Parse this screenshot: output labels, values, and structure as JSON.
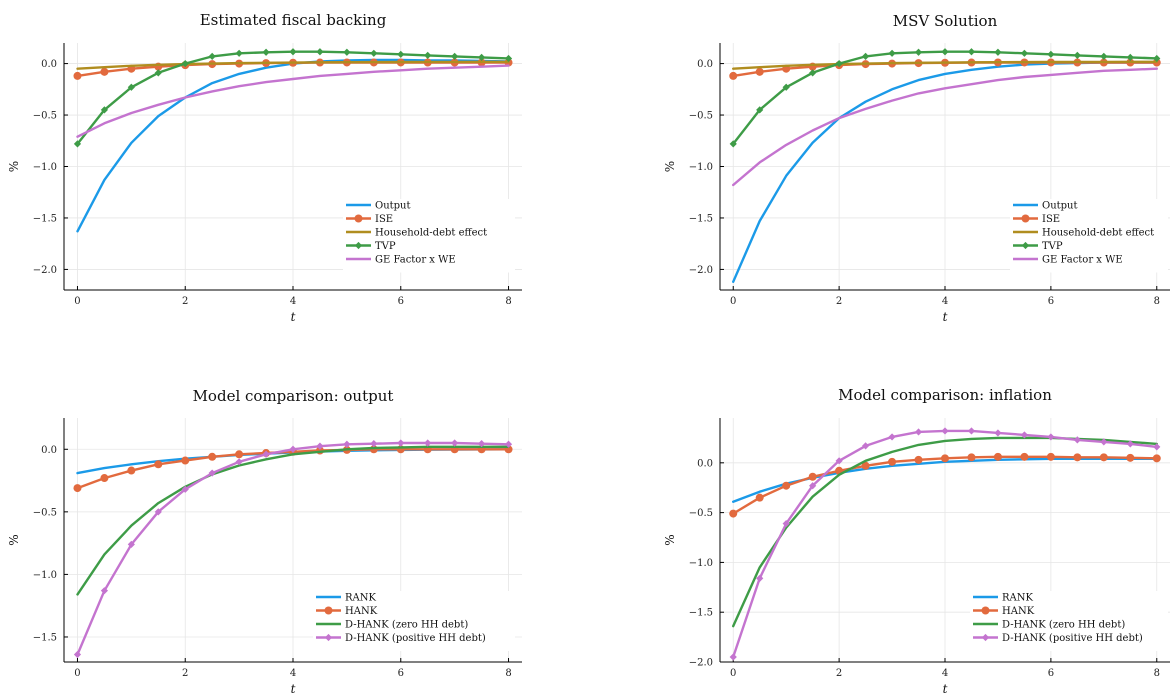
{
  "colors": {
    "blue": "#1b9ae8",
    "orange": "#e26a3e",
    "gold": "#b08d1f",
    "green": "#3e9c47",
    "purple": "#c474cf"
  },
  "chart_data": [
    {
      "type": "line",
      "title": "Estimated fiscal backing",
      "xlabel": "t",
      "ylabel": "%",
      "xlim": [
        -0.25,
        8.25
      ],
      "ylim": [
        -2.2,
        0.2
      ],
      "xticks": [
        0,
        2,
        4,
        6,
        8
      ],
      "yticks": [
        -2.0,
        -1.5,
        -1.0,
        -0.5,
        0.0
      ],
      "ytick_labels": [
        "−2.0",
        "−1.5",
        "−1.0",
        "−0.5",
        "0.0"
      ],
      "grid": true,
      "legend_position": "bottom-right",
      "x": [
        0,
        0.5,
        1,
        1.5,
        2,
        2.5,
        3,
        3.5,
        4,
        4.5,
        5,
        5.5,
        6,
        6.5,
        7,
        7.5,
        8
      ],
      "series": [
        {
          "name": "Output",
          "color": "blue",
          "marker": "none",
          "values": [
            -1.63,
            -1.13,
            -0.77,
            -0.51,
            -0.33,
            -0.19,
            -0.1,
            -0.04,
            0.0,
            0.02,
            0.03,
            0.035,
            0.035,
            0.03,
            0.03,
            0.025,
            0.02
          ]
        },
        {
          "name": "ISE",
          "color": "orange",
          "marker": "circle",
          "values": [
            -0.12,
            -0.08,
            -0.05,
            -0.03,
            -0.015,
            -0.005,
            0.0,
            0.005,
            0.008,
            0.01,
            0.011,
            0.011,
            0.011,
            0.01,
            0.01,
            0.01,
            0.01
          ]
        },
        {
          "name": "Household-debt effect",
          "color": "gold",
          "marker": "none",
          "values": [
            -0.05,
            -0.035,
            -0.022,
            -0.012,
            -0.005,
            0.0,
            0.005,
            0.008,
            0.01,
            0.012,
            0.013,
            0.014,
            0.015,
            0.016,
            0.016,
            0.017,
            0.017
          ]
        },
        {
          "name": "TVP",
          "color": "green",
          "marker": "diamond",
          "values": [
            -0.78,
            -0.45,
            -0.23,
            -0.09,
            0.0,
            0.07,
            0.1,
            0.11,
            0.115,
            0.115,
            0.11,
            0.1,
            0.09,
            0.08,
            0.07,
            0.06,
            0.05
          ]
        },
        {
          "name": "GE Factor x WE",
          "color": "purple",
          "marker": "none",
          "values": [
            -0.71,
            -0.58,
            -0.48,
            -0.4,
            -0.33,
            -0.27,
            -0.22,
            -0.18,
            -0.15,
            -0.12,
            -0.1,
            -0.08,
            -0.065,
            -0.05,
            -0.04,
            -0.03,
            -0.02
          ]
        }
      ]
    },
    {
      "type": "line",
      "title": "MSV Solution",
      "xlabel": "t",
      "ylabel": "%",
      "xlim": [
        -0.25,
        8.25
      ],
      "ylim": [
        -2.2,
        0.2
      ],
      "xticks": [
        0,
        2,
        4,
        6,
        8
      ],
      "yticks": [
        -2.0,
        -1.5,
        -1.0,
        -0.5,
        0.0
      ],
      "ytick_labels": [
        "−2.0",
        "−1.5",
        "−1.0",
        "−0.5",
        "0.0"
      ],
      "grid": true,
      "legend_position": "bottom-right",
      "x": [
        0,
        0.5,
        1,
        1.5,
        2,
        2.5,
        3,
        3.5,
        4,
        4.5,
        5,
        5.5,
        6,
        6.5,
        7,
        7.5,
        8
      ],
      "series": [
        {
          "name": "Output",
          "color": "blue",
          "marker": "none",
          "values": [
            -2.12,
            -1.53,
            -1.09,
            -0.77,
            -0.53,
            -0.37,
            -0.25,
            -0.16,
            -0.1,
            -0.06,
            -0.03,
            -0.01,
            0.0,
            0.005,
            0.01,
            0.01,
            0.01
          ]
        },
        {
          "name": "ISE",
          "color": "orange",
          "marker": "circle",
          "values": [
            -0.12,
            -0.08,
            -0.05,
            -0.03,
            -0.015,
            -0.005,
            0.0,
            0.005,
            0.008,
            0.01,
            0.011,
            0.011,
            0.011,
            0.01,
            0.01,
            0.01,
            0.01
          ]
        },
        {
          "name": "Household-debt effect",
          "color": "gold",
          "marker": "none",
          "values": [
            -0.05,
            -0.035,
            -0.022,
            -0.012,
            -0.005,
            0.0,
            0.005,
            0.008,
            0.01,
            0.012,
            0.013,
            0.014,
            0.015,
            0.016,
            0.016,
            0.017,
            0.017
          ]
        },
        {
          "name": "TVP",
          "color": "green",
          "marker": "diamond",
          "values": [
            -0.78,
            -0.45,
            -0.23,
            -0.09,
            0.0,
            0.07,
            0.1,
            0.11,
            0.115,
            0.115,
            0.11,
            0.1,
            0.09,
            0.08,
            0.07,
            0.06,
            0.05
          ]
        },
        {
          "name": "GE Factor x WE",
          "color": "purple",
          "marker": "none",
          "values": [
            -1.18,
            -0.96,
            -0.79,
            -0.65,
            -0.53,
            -0.44,
            -0.36,
            -0.29,
            -0.24,
            -0.2,
            -0.16,
            -0.13,
            -0.11,
            -0.09,
            -0.07,
            -0.06,
            -0.05
          ]
        }
      ]
    },
    {
      "type": "line",
      "title": "Model comparison: output",
      "xlabel": "t",
      "ylabel": "%",
      "xlim": [
        -0.25,
        8.25
      ],
      "ylim": [
        -1.7,
        0.25
      ],
      "xticks": [
        0,
        2,
        4,
        6,
        8
      ],
      "yticks": [
        -1.5,
        -1.0,
        -0.5,
        0.0
      ],
      "ytick_labels": [
        "−1.5",
        "−1.0",
        "−0.5",
        "0.0"
      ],
      "grid": true,
      "legend_position": "bottom-right",
      "x": [
        0,
        0.5,
        1,
        1.5,
        2,
        2.5,
        3,
        3.5,
        4,
        4.5,
        5,
        5.5,
        6,
        6.5,
        7,
        7.5,
        8
      ],
      "series": [
        {
          "name": "RANK",
          "color": "blue",
          "marker": "none",
          "values": [
            -0.19,
            -0.15,
            -0.12,
            -0.095,
            -0.075,
            -0.06,
            -0.045,
            -0.035,
            -0.025,
            -0.018,
            -0.012,
            -0.008,
            -0.005,
            -0.003,
            -0.002,
            -0.001,
            0.0
          ]
        },
        {
          "name": "HANK",
          "color": "orange",
          "marker": "circle",
          "values": [
            -0.31,
            -0.23,
            -0.17,
            -0.12,
            -0.09,
            -0.06,
            -0.04,
            -0.03,
            -0.02,
            -0.01,
            -0.005,
            0.0,
            0.0,
            0.0,
            0.0,
            0.0,
            0.0
          ]
        },
        {
          "name": "D-HANK (zero HH debt)",
          "color": "green",
          "marker": "none",
          "values": [
            -1.16,
            -0.84,
            -0.61,
            -0.43,
            -0.3,
            -0.2,
            -0.13,
            -0.08,
            -0.04,
            -0.02,
            0.0,
            0.01,
            0.015,
            0.02,
            0.02,
            0.02,
            0.02
          ]
        },
        {
          "name": "D-HANK (positive HH debt)",
          "color": "purple",
          "marker": "diamond",
          "values": [
            -1.64,
            -1.13,
            -0.76,
            -0.5,
            -0.32,
            -0.19,
            -0.1,
            -0.04,
            0.0,
            0.025,
            0.04,
            0.045,
            0.05,
            0.05,
            0.05,
            0.045,
            0.04
          ]
        }
      ]
    },
    {
      "type": "line",
      "title": "Model comparison: inflation",
      "xlabel": "t",
      "ylabel": "%",
      "xlim": [
        -0.25,
        8.25
      ],
      "ylim": [
        -2.0,
        0.45
      ],
      "xticks": [
        0,
        2,
        4,
        6,
        8
      ],
      "yticks": [
        -2.0,
        -1.5,
        -1.0,
        -0.5,
        0.0
      ],
      "ytick_labels": [
        "−2.0",
        "−1.5",
        "−1.0",
        "−0.5",
        "0.0"
      ],
      "grid": true,
      "legend_position": "bottom-right",
      "x": [
        0,
        0.5,
        1,
        1.5,
        2,
        2.5,
        3,
        3.5,
        4,
        4.5,
        5,
        5.5,
        6,
        6.5,
        7,
        7.5,
        8
      ],
      "series": [
        {
          "name": "RANK",
          "color": "blue",
          "marker": "none",
          "values": [
            -0.39,
            -0.29,
            -0.21,
            -0.15,
            -0.1,
            -0.06,
            -0.03,
            -0.01,
            0.01,
            0.02,
            0.03,
            0.035,
            0.04,
            0.04,
            0.04,
            0.04,
            0.04
          ]
        },
        {
          "name": "HANK",
          "color": "orange",
          "marker": "circle",
          "values": [
            -0.51,
            -0.35,
            -0.23,
            -0.14,
            -0.08,
            -0.03,
            0.01,
            0.03,
            0.045,
            0.055,
            0.06,
            0.06,
            0.06,
            0.055,
            0.055,
            0.05,
            0.045
          ]
        },
        {
          "name": "D-HANK (zero HH debt)",
          "color": "green",
          "marker": "none",
          "values": [
            -1.64,
            -1.05,
            -0.65,
            -0.34,
            -0.12,
            0.02,
            0.11,
            0.18,
            0.22,
            0.24,
            0.25,
            0.25,
            0.25,
            0.24,
            0.23,
            0.21,
            0.19
          ]
        },
        {
          "name": "D-HANK (positive HH debt)",
          "color": "purple",
          "marker": "diamond",
          "values": [
            -1.95,
            -1.16,
            -0.61,
            -0.23,
            0.02,
            0.17,
            0.26,
            0.31,
            0.32,
            0.32,
            0.3,
            0.28,
            0.26,
            0.23,
            0.21,
            0.19,
            0.16
          ]
        }
      ]
    }
  ]
}
